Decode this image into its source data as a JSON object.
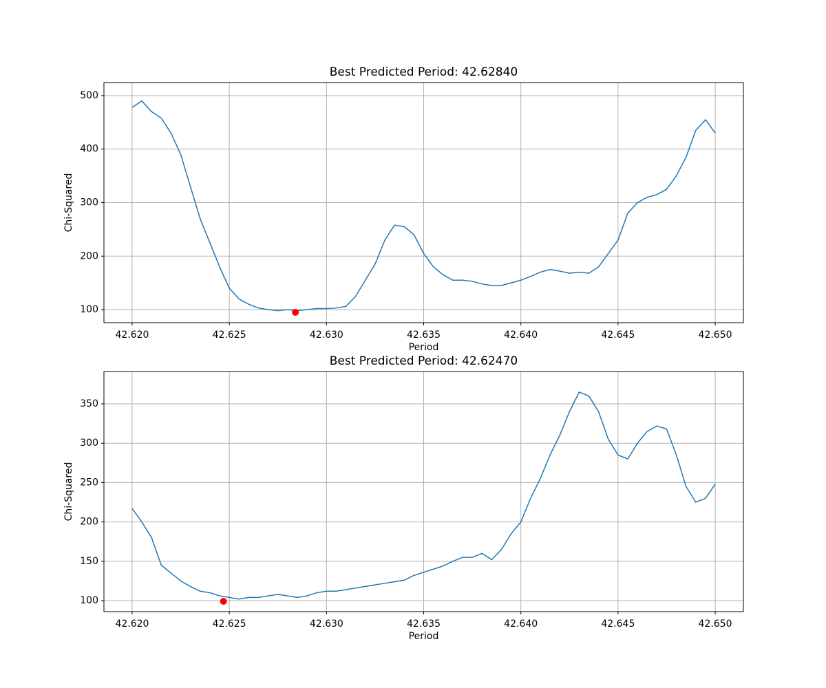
{
  "chart_data": [
    {
      "type": "line",
      "title": "Best Predicted Period: 42.62840",
      "x_label": "Period",
      "y_label": "Chi-Squared",
      "x": [
        42.62,
        42.6205,
        42.621,
        42.6215,
        42.622,
        42.6225,
        42.623,
        42.6235,
        42.624,
        42.6245,
        42.625,
        42.6255,
        42.626,
        42.6265,
        42.627,
        42.6275,
        42.628,
        42.6285,
        42.629,
        42.6295,
        42.63,
        42.6305,
        42.631,
        42.6315,
        42.632,
        42.6325,
        42.633,
        42.6335,
        42.634,
        42.6345,
        42.635,
        42.6355,
        42.636,
        42.6365,
        42.637,
        42.6375,
        42.638,
        42.6385,
        42.639,
        42.6395,
        42.64,
        42.6405,
        42.641,
        42.6415,
        42.642,
        42.6425,
        42.643,
        42.6435,
        42.644,
        42.6445,
        42.645,
        42.6455,
        42.646,
        42.6465,
        42.647,
        42.6475,
        42.648,
        42.6485,
        42.649,
        42.6495,
        42.65
      ],
      "series": [
        {
          "color": "#1f77b4",
          "values": [
            478,
            490,
            470,
            458,
            430,
            390,
            330,
            270,
            225,
            180,
            140,
            120,
            110,
            103,
            100,
            98,
            100,
            98,
            100,
            102,
            102,
            103,
            106,
            125,
            155,
            185,
            230,
            258,
            255,
            240,
            205,
            180,
            165,
            155,
            155,
            153,
            148,
            145,
            145,
            150,
            155,
            162,
            170,
            175,
            172,
            168,
            170,
            168,
            180,
            205,
            230,
            280,
            300,
            310,
            315,
            325,
            350,
            385,
            435,
            455,
            430
          ]
        }
      ],
      "highlight": {
        "x": [
          42.6284
        ],
        "y": [
          94.9
        ],
        "color": "#ff0000"
      },
      "xlim": [
        42.61855,
        42.65145
      ],
      "ylim": [
        75.6,
        524.4
      ],
      "xticks": [
        {
          "value": 42.62,
          "label": "42.620"
        },
        42.625,
        {
          "value": 42.63,
          "label": "42.630"
        },
        42.635,
        {
          "value": 42.64,
          "label": "42.640"
        },
        42.645,
        {
          "value": 42.65,
          "label": "42.650"
        }
      ],
      "yticks": [
        100,
        200,
        300,
        400,
        500
      ],
      "grid": true
    },
    {
      "type": "line",
      "title": "Best Predicted Period: 42.62470",
      "x_label": "Period",
      "y_label": "Chi-Squared",
      "x": [
        42.62,
        42.6205,
        42.621,
        42.6215,
        42.622,
        42.6225,
        42.623,
        42.6235,
        42.624,
        42.6245,
        42.625,
        42.6255,
        42.626,
        42.6265,
        42.627,
        42.6275,
        42.628,
        42.6285,
        42.629,
        42.6295,
        42.63,
        42.6305,
        42.631,
        42.6315,
        42.632,
        42.6325,
        42.633,
        42.6335,
        42.634,
        42.6345,
        42.635,
        42.6355,
        42.636,
        42.6365,
        42.637,
        42.6375,
        42.638,
        42.6385,
        42.639,
        42.6395,
        42.64,
        42.6405,
        42.641,
        42.6415,
        42.642,
        42.6425,
        42.643,
        42.6435,
        42.644,
        42.6445,
        42.645,
        42.6455,
        42.646,
        42.6465,
        42.647,
        42.6475,
        42.648,
        42.6485,
        42.649,
        42.6495,
        42.65
      ],
      "series": [
        {
          "color": "#1f77b4",
          "values": [
            217,
            200,
            180,
            145,
            135,
            125,
            118,
            112,
            110,
            106,
            104,
            102,
            104,
            104,
            106,
            108,
            106,
            104,
            106,
            110,
            112,
            112,
            114,
            116,
            118,
            120,
            122,
            124,
            126,
            132,
            136,
            140,
            144,
            150,
            155,
            155,
            160,
            152,
            165,
            185,
            200,
            230,
            255,
            285,
            310,
            340,
            365,
            360,
            340,
            305,
            285,
            280,
            300,
            315,
            322,
            318,
            285,
            245,
            225,
            230,
            248
          ]
        }
      ],
      "highlight": {
        "x": [
          42.6247
        ],
        "y": [
          99.1
        ],
        "color": "#ff0000"
      },
      "xlim": [
        42.61855,
        42.65145
      ],
      "ylim": [
        86.0,
        391.1
      ],
      "xticks": [
        {
          "value": 42.62,
          "label": "42.620"
        },
        42.625,
        {
          "value": 42.63,
          "label": "42.630"
        },
        42.635,
        {
          "value": 42.64,
          "label": "42.640"
        },
        42.645,
        {
          "value": 42.65,
          "label": "42.650"
        }
      ],
      "yticks": [
        100,
        150,
        200,
        250,
        300,
        350
      ],
      "grid": true
    }
  ]
}
